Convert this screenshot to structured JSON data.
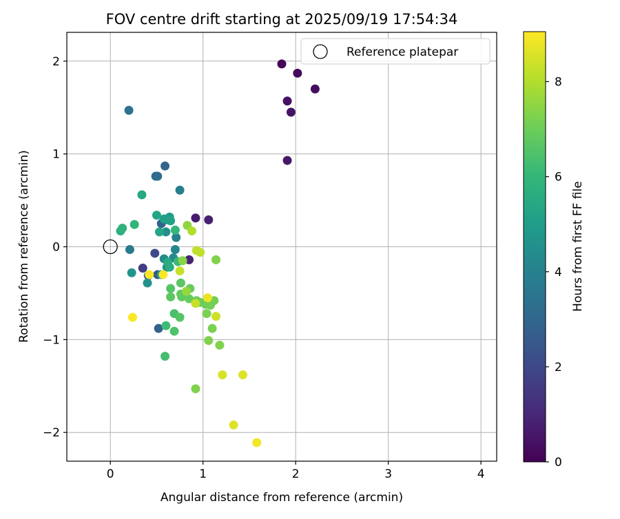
{
  "chart_data": {
    "type": "scatter",
    "title": "FOV centre drift starting at 2025/09/19 17:54:34",
    "xlabel": "Angular distance from reference (arcmin)",
    "ylabel": "Rotation from reference (arcmin)",
    "xlim": [
      -0.47,
      4.17
    ],
    "ylim": [
      -2.31,
      2.31
    ],
    "xticks": [
      0,
      1,
      2,
      3,
      4
    ],
    "yticks": [
      -2,
      -1,
      0,
      1,
      2
    ],
    "xtick_labels": [
      "0",
      "1",
      "2",
      "3",
      "4"
    ],
    "ytick_labels": [
      "−2",
      "−1",
      "0",
      "1",
      "2"
    ],
    "grid": true,
    "legend": {
      "position": "top-right",
      "label": "Reference platepar"
    },
    "reference_point": {
      "x": 0,
      "y": 0
    },
    "colorbar": {
      "label": "Hours from first FF file",
      "range": [
        0,
        9.05
      ],
      "ticks": [
        0,
        2,
        4,
        6,
        8
      ],
      "tick_labels": [
        "0",
        "2",
        "4",
        "6",
        "8"
      ],
      "colormap": "viridis",
      "stops": [
        "#440154",
        "#482878",
        "#3e4989",
        "#31688e",
        "#26828e",
        "#1f9e89",
        "#35b779",
        "#6ece58",
        "#b5de2b",
        "#fde725"
      ]
    },
    "points": [
      {
        "x": 1.85,
        "y": 1.97,
        "h": 0.1
      },
      {
        "x": 2.02,
        "y": 1.87,
        "h": 0.2
      },
      {
        "x": 2.21,
        "y": 1.7,
        "h": 0.3
      },
      {
        "x": 1.91,
        "y": 1.57,
        "h": 0.4
      },
      {
        "x": 1.95,
        "y": 1.45,
        "h": 0.5
      },
      {
        "x": 1.91,
        "y": 0.93,
        "h": 0.6
      },
      {
        "x": 0.92,
        "y": 0.31,
        "h": 0.7
      },
      {
        "x": 1.06,
        "y": 0.29,
        "h": 0.8
      },
      {
        "x": 0.85,
        "y": -0.14,
        "h": 0.9
      },
      {
        "x": 0.35,
        "y": -0.23,
        "h": 1.6
      },
      {
        "x": 0.48,
        "y": -0.07,
        "h": 2.0
      },
      {
        "x": 0.41,
        "y": -0.31,
        "h": 2.2
      },
      {
        "x": 0.51,
        "y": -0.3,
        "h": 2.5
      },
      {
        "x": 0.52,
        "y": -0.88,
        "h": 2.8
      },
      {
        "x": 0.55,
        "y": 0.25,
        "h": 2.9
      },
      {
        "x": 0.59,
        "y": 0.87,
        "h": 3.0
      },
      {
        "x": 0.49,
        "y": 0.76,
        "h": 3.1
      },
      {
        "x": 0.51,
        "y": 0.76,
        "h": 3.2
      },
      {
        "x": 0.2,
        "y": 1.47,
        "h": 3.4
      },
      {
        "x": 0.21,
        "y": -0.03,
        "h": 3.7
      },
      {
        "x": 0.75,
        "y": 0.61,
        "h": 3.9
      },
      {
        "x": 0.71,
        "y": 0.1,
        "h": 4.0
      },
      {
        "x": 0.7,
        "y": -0.03,
        "h": 4.2
      },
      {
        "x": 0.68,
        "y": -0.12,
        "h": 4.3
      },
      {
        "x": 0.58,
        "y": -0.13,
        "h": 4.4
      },
      {
        "x": 0.6,
        "y": 0.16,
        "h": 4.5
      },
      {
        "x": 0.61,
        "y": -0.22,
        "h": 4.6
      },
      {
        "x": 0.4,
        "y": -0.39,
        "h": 4.6
      },
      {
        "x": 0.23,
        "y": -0.28,
        "h": 4.7
      },
      {
        "x": 0.55,
        "y": -0.3,
        "h": 4.8
      },
      {
        "x": 0.62,
        "y": 0.29,
        "h": 4.9
      },
      {
        "x": 0.64,
        "y": 0.32,
        "h": 5.0
      },
      {
        "x": 0.58,
        "y": 0.3,
        "h": 5.1
      },
      {
        "x": 0.65,
        "y": 0.28,
        "h": 5.2
      },
      {
        "x": 0.5,
        "y": 0.34,
        "h": 5.3
      },
      {
        "x": 0.53,
        "y": 0.16,
        "h": 5.3
      },
      {
        "x": 0.34,
        "y": 0.56,
        "h": 5.4
      },
      {
        "x": 0.62,
        "y": -0.17,
        "h": 5.5
      },
      {
        "x": 0.64,
        "y": -0.22,
        "h": 5.6
      },
      {
        "x": 0.11,
        "y": 0.17,
        "h": 5.7
      },
      {
        "x": 0.13,
        "y": 0.2,
        "h": 5.8
      },
      {
        "x": 0.26,
        "y": 0.24,
        "h": 5.9
      },
      {
        "x": 0.7,
        "y": 0.18,
        "h": 6.0
      },
      {
        "x": 0.73,
        "y": -0.16,
        "h": 6.1
      },
      {
        "x": 0.6,
        "y": -0.85,
        "h": 6.2
      },
      {
        "x": 0.59,
        "y": -1.18,
        "h": 6.3
      },
      {
        "x": 0.69,
        "y": -0.72,
        "h": 6.4
      },
      {
        "x": 0.69,
        "y": -0.91,
        "h": 6.5
      },
      {
        "x": 0.75,
        "y": -0.76,
        "h": 6.6
      },
      {
        "x": 0.65,
        "y": -0.45,
        "h": 6.6
      },
      {
        "x": 0.65,
        "y": -0.54,
        "h": 6.7
      },
      {
        "x": 0.76,
        "y": -0.39,
        "h": 6.7
      },
      {
        "x": 0.76,
        "y": -0.51,
        "h": 6.8
      },
      {
        "x": 0.77,
        "y": -0.54,
        "h": 6.8
      },
      {
        "x": 0.86,
        "y": -0.45,
        "h": 6.9
      },
      {
        "x": 0.85,
        "y": -0.56,
        "h": 6.9
      },
      {
        "x": 0.93,
        "y": -0.58,
        "h": 7.0
      },
      {
        "x": 0.97,
        "y": -0.6,
        "h": 7.0
      },
      {
        "x": 1.03,
        "y": -0.62,
        "h": 7.0
      },
      {
        "x": 1.08,
        "y": -0.63,
        "h": 7.1
      },
      {
        "x": 1.12,
        "y": -0.58,
        "h": 7.1
      },
      {
        "x": 1.04,
        "y": -0.72,
        "h": 7.2
      },
      {
        "x": 1.1,
        "y": -0.88,
        "h": 7.2
      },
      {
        "x": 1.06,
        "y": -1.01,
        "h": 7.3
      },
      {
        "x": 1.18,
        "y": -1.06,
        "h": 7.3
      },
      {
        "x": 0.92,
        "y": -1.53,
        "h": 7.3
      },
      {
        "x": 1.14,
        "y": -0.14,
        "h": 7.3
      },
      {
        "x": 0.78,
        "y": -0.15,
        "h": 7.4
      },
      {
        "x": 0.83,
        "y": 0.23,
        "h": 7.5
      },
      {
        "x": 0.82,
        "y": -0.48,
        "h": 7.6
      },
      {
        "x": 0.88,
        "y": 0.17,
        "h": 8.0
      },
      {
        "x": 0.93,
        "y": -0.04,
        "h": 8.2
      },
      {
        "x": 0.97,
        "y": -0.06,
        "h": 8.2
      },
      {
        "x": 0.75,
        "y": -0.26,
        "h": 8.3
      },
      {
        "x": 0.92,
        "y": -0.61,
        "h": 8.3
      },
      {
        "x": 1.14,
        "y": -0.75,
        "h": 8.4
      },
      {
        "x": 1.21,
        "y": -1.38,
        "h": 8.5
      },
      {
        "x": 1.43,
        "y": -1.38,
        "h": 8.6
      },
      {
        "x": 1.33,
        "y": -1.92,
        "h": 8.6
      },
      {
        "x": 1.05,
        "y": -0.55,
        "h": 8.8
      },
      {
        "x": 1.58,
        "y": -2.11,
        "h": 8.9
      },
      {
        "x": 0.24,
        "y": -0.76,
        "h": 9.0
      },
      {
        "x": 0.42,
        "y": -0.3,
        "h": 9.0
      },
      {
        "x": 0.57,
        "y": -0.3,
        "h": 9.0
      }
    ]
  }
}
